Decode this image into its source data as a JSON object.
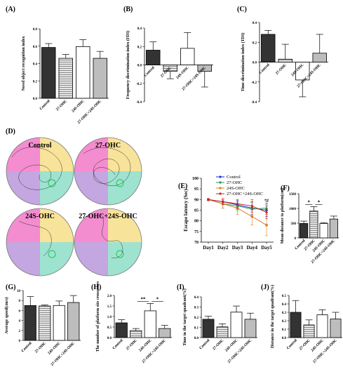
{
  "colors": {
    "control": "#333333",
    "hatch": "#bdbdbd",
    "white": "#ffffff",
    "quad_pink": "#f48cd0",
    "quad_yellow": "#f8e39a",
    "quad_purple": "#c4a6e0",
    "quad_teal": "#9ee3cf",
    "platform": "#33cc66",
    "line_control": "#1f2fd6",
    "line_27": "#1f9a55",
    "line_24": "#e07b1f",
    "line_27_24": "#cc2222"
  },
  "categories": [
    "Control",
    "27-OHC",
    "24S-OHC",
    "27-OHC+24S-OHC"
  ],
  "chart_data": [
    {
      "panel": "(A)",
      "type": "bar",
      "categories": [
        "Control",
        "27-OHC",
        "24S-OHC",
        "27-OHC+24S-OHC"
      ],
      "values": [
        0.585,
        0.46,
        0.595,
        0.46
      ],
      "errors": [
        0.045,
        0.045,
        0.08,
        0.08
      ],
      "ylabel": "Novel object recognition index",
      "ylim": [
        0,
        0.8
      ],
      "yticks": [
        "0.0",
        "0.2",
        "0.4",
        "0.6",
        "0.8"
      ],
      "yticks_num": [
        0,
        0.2,
        0.4,
        0.6,
        0.8
      ]
    },
    {
      "panel": "(B)",
      "type": "bar",
      "categories": [
        "Control",
        "27-OHC",
        "24S-OHC",
        "27-OHC+24S-OHC"
      ],
      "values": [
        0.16,
        -0.07,
        0.18,
        -0.07
      ],
      "errors": [
        0.09,
        0.08,
        0.17,
        0.17
      ],
      "ylabel": "Frequency discrimination index (FDI)",
      "ylim": [
        -0.4,
        0.4
      ],
      "yticks": [
        "-0.4",
        "-0.2",
        "0.0",
        "0.2",
        "0.4"
      ],
      "yticks_num": [
        -0.4,
        -0.2,
        0,
        0.2,
        0.4
      ]
    },
    {
      "panel": "(C)",
      "type": "bar",
      "categories": [
        "Control",
        "27-OHC",
        "24S-OHC",
        "27-OHC+24S-OHC"
      ],
      "values": [
        0.28,
        0.03,
        -0.18,
        0.09
      ],
      "errors": [
        0.04,
        0.15,
        0.17,
        0.19
      ],
      "ylabel": "Time discrimination index (TDI)",
      "ylim": [
        -0.4,
        0.4
      ],
      "yticks": [
        "-0.4",
        "-0.2",
        "0.0",
        "0.2",
        "0.4"
      ],
      "yticks_num": [
        -0.4,
        -0.2,
        0,
        0.2,
        0.4
      ]
    },
    {
      "panel": "(E)",
      "type": "line",
      "x": [
        "Day1",
        "Day2",
        "Day3",
        "Day4",
        "Day5"
      ],
      "series": [
        {
          "name": "Control",
          "values": [
            90,
            89,
            87.5,
            86,
            85
          ],
          "errors": [
            0.5,
            1,
            2,
            3,
            3
          ],
          "marker": "circle"
        },
        {
          "name": "27-OHC",
          "values": [
            90,
            88,
            87,
            85.5,
            86
          ],
          "errors": [
            0.5,
            2,
            2,
            3,
            3
          ],
          "marker": "triangle"
        },
        {
          "name": "24S-OHC",
          "values": [
            90,
            88,
            86,
            82,
            78
          ],
          "errors": [
            0.5,
            2,
            3,
            4,
            5
          ],
          "marker": "square"
        },
        {
          "name": "27-OHC+24S-OHC",
          "values": [
            90,
            89,
            88,
            87,
            84
          ],
          "errors": [
            0.5,
            1.5,
            2,
            3,
            3
          ],
          "marker": "diamond"
        }
      ],
      "ylabel": "Escape latency (Sec)",
      "ylim": [
        70,
        100
      ],
      "yticks": [
        "70",
        "75",
        "80",
        "85",
        "90",
        "95",
        "100"
      ],
      "yticks_num": [
        70,
        75,
        80,
        85,
        90,
        95,
        100
      ],
      "annotation": "*#",
      "legend_position": "top-right"
    },
    {
      "panel": "(F)",
      "type": "bar",
      "categories": [
        "Control",
        "27-OHC",
        "24S-OHC",
        "27-OHC+24S-OHC"
      ],
      "values": [
        490,
        910,
        490,
        640
      ],
      "errors": [
        80,
        150,
        30,
        100
      ],
      "ylabel": "Mean distance to platform(cm)",
      "ylim": [
        0,
        1500
      ],
      "yticks": [
        "0",
        "500",
        "1000",
        "1500"
      ],
      "yticks_num": [
        0,
        500,
        1000,
        1500
      ],
      "significance": [
        {
          "from": 0,
          "to": 1,
          "label": "*"
        },
        {
          "from": 1,
          "to": 2,
          "label": "*"
        }
      ]
    },
    {
      "panel": "(G)",
      "type": "bar",
      "categories": [
        "Control",
        "27-OHC",
        "24S-OHC",
        "27-OHC+24S-OHC"
      ],
      "values": [
        7.0,
        6.9,
        7.0,
        7.6
      ],
      "errors": [
        1.8,
        0.2,
        0.9,
        1.4
      ],
      "ylabel": "Average speed(cm/s)",
      "ylim": [
        0,
        10
      ],
      "yticks": [
        "0",
        "2",
        "4",
        "6",
        "8",
        "10"
      ],
      "yticks_num": [
        0,
        2,
        4,
        6,
        8,
        10
      ]
    },
    {
      "panel": "(H)",
      "type": "bar",
      "categories": [
        "Control",
        "27-OHC",
        "24S-OHC",
        "27-OHC+24S-OHC"
      ],
      "values": [
        0.7,
        0.33,
        1.27,
        0.43
      ],
      "errors": [
        0.15,
        0.1,
        0.35,
        0.15
      ],
      "ylabel": "The number of platform site crossovers",
      "ylim": [
        0,
        2.0
      ],
      "yticks": [
        "0.0",
        "0.5",
        "1.0",
        "1.5",
        "2.0"
      ],
      "yticks_num": [
        0,
        0.5,
        1.0,
        1.5,
        2.0
      ],
      "significance": [
        {
          "from": 1,
          "to": 2,
          "label": "**"
        },
        {
          "from": 2,
          "to": 3,
          "label": "*"
        }
      ]
    },
    {
      "panel": "(I)",
      "type": "bar",
      "categories": [
        "Control",
        "27-OHC",
        "24S-OHC",
        "27-OHC+24S-OHC"
      ],
      "values": [
        0.18,
        0.105,
        0.25,
        0.18
      ],
      "errors": [
        0.03,
        0.03,
        0.06,
        0.06
      ],
      "ylabel": "Time in the target quadrant(%)",
      "ylim": [
        0,
        0.4
      ],
      "yticks": [
        "0.0",
        "0.1",
        "0.2",
        "0.3",
        "0.4"
      ],
      "yticks_num": [
        0,
        0.1,
        0.2,
        0.3,
        0.4
      ]
    },
    {
      "panel": "(J)",
      "type": "bar",
      "categories": [
        "Control",
        "27-OHC",
        "24S-OHC",
        "27-OHC+24S-OHC"
      ],
      "values": [
        0.3,
        0.15,
        0.27,
        0.22
      ],
      "errors": [
        0.14,
        0.06,
        0.06,
        0.08
      ],
      "ylabel": "Distance in the target quadrant(%)",
      "ylim": [
        0,
        0.5
      ],
      "yticks": [
        "0.0",
        "0.1",
        "0.2",
        "0.3",
        "0.4",
        "0.5"
      ],
      "yticks_num": [
        0,
        0.1,
        0.2,
        0.3,
        0.4,
        0.5
      ]
    }
  ],
  "panel_d": {
    "label": "(D)",
    "circles": [
      "Control",
      "27-OHC",
      "24S-OHC",
      "27-OHC+24S-OHC"
    ]
  }
}
